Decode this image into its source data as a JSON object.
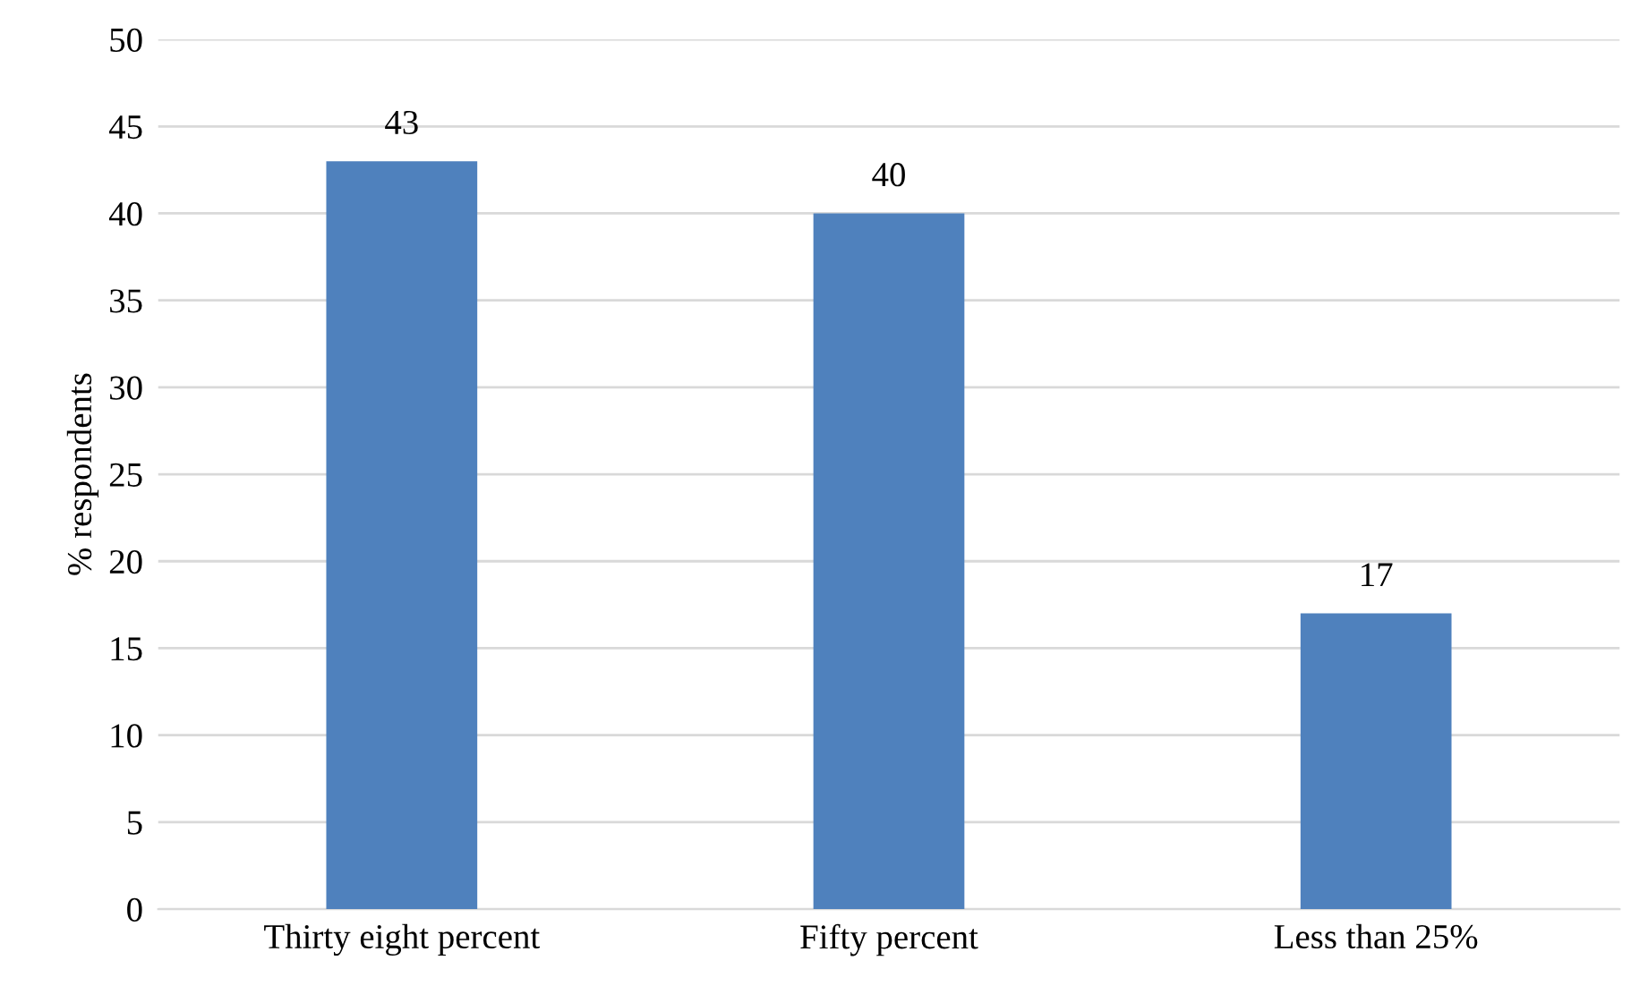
{
  "chart_data": {
    "type": "bar",
    "ylabel": "% respondents",
    "categories": [
      "Thirty eight percent",
      "Fifty percent",
      "Less than 25%"
    ],
    "values": [
      43,
      40,
      17
    ],
    "color": "#4f81bd",
    "ylim": [
      0,
      50
    ],
    "yticks": [
      0,
      5,
      10,
      15,
      20,
      25,
      30,
      35,
      40,
      45,
      50
    ],
    "grid": "y",
    "data_labels": true
  }
}
